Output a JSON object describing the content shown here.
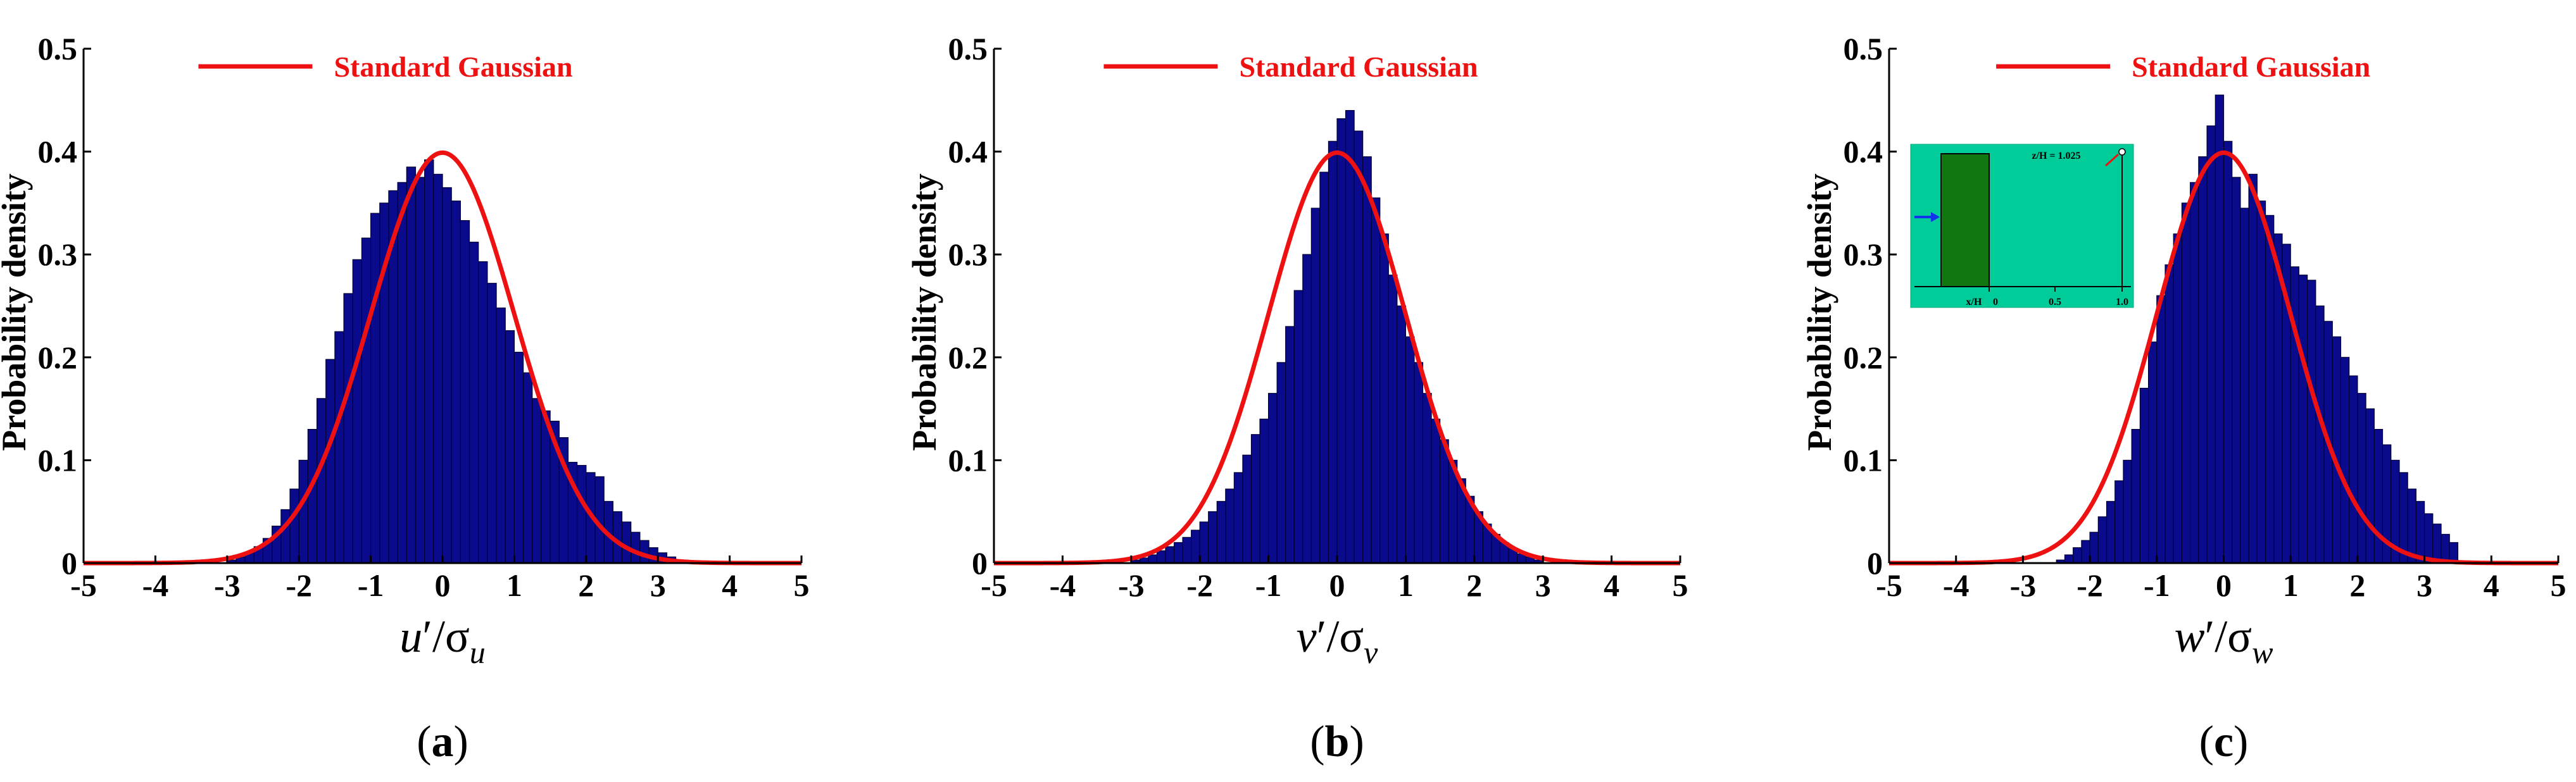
{
  "chart_data": [
    {
      "type": "bar",
      "panel_label": "a",
      "ylabel": "Probability density",
      "xlabel": {
        "var": "u",
        "sigma_sub": "u"
      },
      "xlim": [
        -5,
        5
      ],
      "ylim": [
        0,
        0.5
      ],
      "xticks": [
        "-5",
        "-4",
        "-3",
        "-2",
        "-1",
        "0",
        "1",
        "2",
        "3",
        "4",
        "5"
      ],
      "yticks": [
        "0",
        "0.1",
        "0.2",
        "0.3",
        "0.4",
        "0.5"
      ],
      "legend": {
        "label": "Standard Gaussian",
        "position": "top-right"
      },
      "bar_color": "#0a0a8c",
      "curve_color": "#ee1111",
      "bins": {
        "start": -3.0,
        "width": 0.125,
        "values": [
          0.003,
          0.006,
          0.01,
          0.016,
          0.024,
          0.036,
          0.052,
          0.072,
          0.1,
          0.13,
          0.16,
          0.198,
          0.225,
          0.262,
          0.295,
          0.316,
          0.34,
          0.35,
          0.362,
          0.37,
          0.385,
          0.375,
          0.392,
          0.378,
          0.365,
          0.352,
          0.333,
          0.312,
          0.293,
          0.272,
          0.248,
          0.226,
          0.205,
          0.185,
          0.16,
          0.148,
          0.138,
          0.122,
          0.098,
          0.095,
          0.088,
          0.084,
          0.06,
          0.05,
          0.04,
          0.03,
          0.022,
          0.015,
          0.01,
          0.006,
          0.003,
          0.002
        ]
      }
    },
    {
      "type": "bar",
      "panel_label": "b",
      "ylabel": "Probability density",
      "xlabel": {
        "var": "v",
        "sigma_sub": "v"
      },
      "xlim": [
        -5,
        5
      ],
      "ylim": [
        0,
        0.5
      ],
      "xticks": [
        "-5",
        "-4",
        "-3",
        "-2",
        "-1",
        "0",
        "1",
        "2",
        "3",
        "4",
        "5"
      ],
      "yticks": [
        "0",
        "0.1",
        "0.2",
        "0.3",
        "0.4",
        "0.5"
      ],
      "legend": {
        "label": "Standard Gaussian",
        "position": "top-right"
      },
      "bar_color": "#0a0a8c",
      "curve_color": "#ee1111",
      "bins": {
        "start": -3.0,
        "width": 0.125,
        "values": [
          0.003,
          0.005,
          0.008,
          0.012,
          0.016,
          0.02,
          0.025,
          0.032,
          0.04,
          0.05,
          0.06,
          0.072,
          0.088,
          0.105,
          0.125,
          0.14,
          0.165,
          0.195,
          0.23,
          0.265,
          0.3,
          0.345,
          0.38,
          0.41,
          0.432,
          0.44,
          0.42,
          0.395,
          0.355,
          0.32,
          0.28,
          0.25,
          0.22,
          0.195,
          0.165,
          0.14,
          0.12,
          0.1,
          0.082,
          0.065,
          0.05,
          0.038,
          0.028,
          0.02,
          0.014,
          0.009,
          0.006,
          0.003
        ]
      }
    },
    {
      "type": "bar",
      "panel_label": "c",
      "ylabel": "Probability density",
      "xlabel": {
        "var": "w",
        "sigma_sub": "w"
      },
      "xlim": [
        -5,
        5
      ],
      "ylim": [
        0,
        0.5
      ],
      "xticks": [
        "-5",
        "-4",
        "-3",
        "-2",
        "-1",
        "0",
        "1",
        "2",
        "3",
        "4",
        "5"
      ],
      "yticks": [
        "0",
        "0.1",
        "0.2",
        "0.3",
        "0.4",
        "0.5"
      ],
      "legend": {
        "label": "Standard Gaussian",
        "position": "top-right"
      },
      "bar_color": "#0a0a8c",
      "curve_color": "#ee1111",
      "bins": {
        "start": -2.5,
        "width": 0.125,
        "values": [
          0.003,
          0.008,
          0.015,
          0.022,
          0.03,
          0.045,
          0.06,
          0.08,
          0.1,
          0.13,
          0.17,
          0.215,
          0.26,
          0.29,
          0.32,
          0.35,
          0.37,
          0.395,
          0.425,
          0.455,
          0.41,
          0.375,
          0.345,
          0.378,
          0.352,
          0.338,
          0.32,
          0.31,
          0.288,
          0.28,
          0.275,
          0.25,
          0.235,
          0.22,
          0.2,
          0.182,
          0.165,
          0.15,
          0.13,
          0.115,
          0.1,
          0.088,
          0.072,
          0.06,
          0.048,
          0.038,
          0.028,
          0.02
        ]
      },
      "inset": {
        "ylabel": "z/H = 1.025",
        "xlabel": "x/H",
        "xticks": [
          "0",
          "0.5",
          "1.0"
        ]
      }
    }
  ]
}
